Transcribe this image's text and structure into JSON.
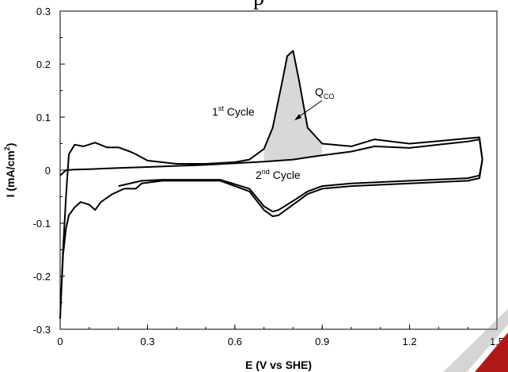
{
  "chart_data": {
    "type": "line",
    "xlabel": "E (V vs SHE)",
    "ylabel_base": "I (mA/cm",
    "ylabel_sup": "2",
    "ylabel_end": ")",
    "xlim": [
      0,
      1.5
    ],
    "ylim": [
      -0.3,
      0.3
    ],
    "xticks": [
      "0",
      "0.3",
      "0.6",
      "0.9",
      "1.2",
      "1.5"
    ],
    "yticks": [
      "0.3",
      "0.2",
      "0.1",
      "0",
      "-0.1",
      "-0.2",
      "-0.3"
    ],
    "grid": false,
    "annotations": {
      "cycle1": {
        "base": "1",
        "sup": "st",
        "rest": " Cycle"
      },
      "cycle2": {
        "base": "2",
        "sup": "nd",
        "rest": " Cycle"
      },
      "qco": {
        "base": "Q",
        "sub": "CO"
      }
    },
    "series": [
      {
        "x": [
          0.0,
          0.01,
          0.02,
          0.03,
          0.05,
          0.08,
          0.12,
          0.16,
          0.2,
          0.24,
          0.26,
          0.3,
          0.4,
          0.5,
          0.6,
          0.65,
          0.7,
          0.73,
          0.76,
          0.78,
          0.8,
          0.82,
          0.85,
          0.9,
          1.0,
          1.08,
          1.2,
          1.3,
          1.4,
          1.44,
          1.45,
          1.44,
          1.4,
          1.2,
          1.0,
          0.9,
          0.85,
          0.8,
          0.75,
          0.73,
          0.7,
          0.65,
          0.55,
          0.45,
          0.35,
          0.28,
          0.26,
          0.22,
          0.18,
          0.14,
          0.12,
          0.1,
          0.07,
          0.05,
          0.03,
          0.02,
          0.01,
          0.005,
          0.0
        ],
        "y": [
          -0.28,
          -0.15,
          -0.05,
          0.03,
          0.048,
          0.045,
          0.052,
          0.043,
          0.043,
          0.035,
          0.03,
          0.018,
          0.012,
          0.012,
          0.015,
          0.02,
          0.04,
          0.08,
          0.16,
          0.215,
          0.225,
          0.17,
          0.08,
          0.05,
          0.045,
          0.058,
          0.05,
          0.055,
          0.06,
          0.062,
          0.02,
          -0.015,
          -0.02,
          -0.025,
          -0.03,
          -0.035,
          -0.045,
          -0.065,
          -0.085,
          -0.087,
          -0.075,
          -0.04,
          -0.02,
          -0.02,
          -0.02,
          -0.025,
          -0.035,
          -0.035,
          -0.045,
          -0.06,
          -0.075,
          -0.065,
          -0.06,
          -0.07,
          -0.085,
          -0.11,
          -0.16,
          -0.22,
          -0.28
        ]
      },
      {
        "x": [
          0.0,
          0.02,
          0.05,
          0.1,
          0.2,
          0.3,
          0.4,
          0.5,
          0.6,
          0.7,
          0.8,
          0.85,
          0.9,
          1.0,
          1.08,
          1.2,
          1.3,
          1.4,
          1.44,
          1.45,
          1.44,
          1.4,
          1.2,
          1.0,
          0.9,
          0.85,
          0.8,
          0.75,
          0.73,
          0.7,
          0.65,
          0.55,
          0.45,
          0.35,
          0.28,
          0.2
        ],
        "y": [
          -0.01,
          0.0,
          0.001,
          0.002,
          0.004,
          0.006,
          0.008,
          0.01,
          0.013,
          0.016,
          0.02,
          0.024,
          0.028,
          0.035,
          0.045,
          0.042,
          0.048,
          0.054,
          0.058,
          0.02,
          -0.01,
          -0.015,
          -0.02,
          -0.025,
          -0.03,
          -0.04,
          -0.058,
          -0.075,
          -0.078,
          -0.068,
          -0.035,
          -0.018,
          -0.018,
          -0.018,
          -0.02,
          -0.03
        ]
      }
    ]
  }
}
